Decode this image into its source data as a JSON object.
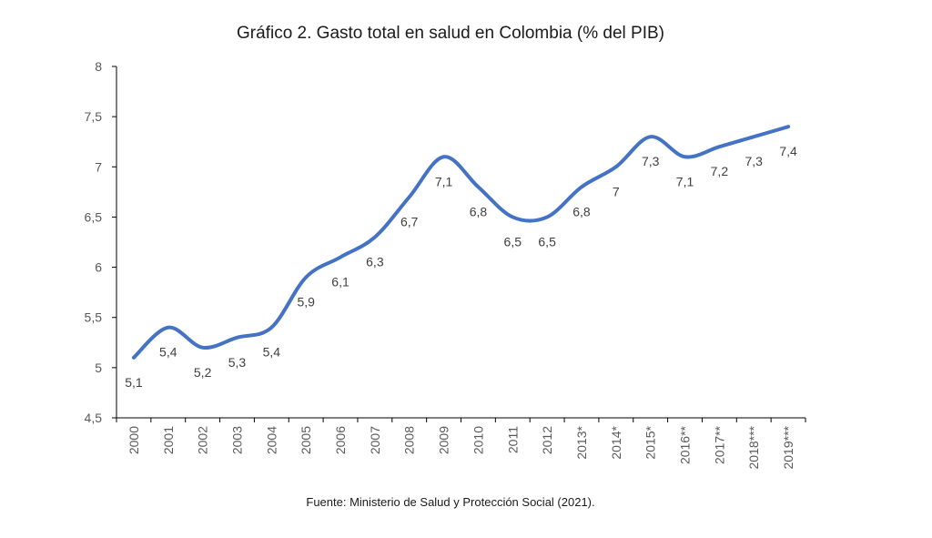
{
  "chart_data": {
    "type": "line",
    "title": "Gráfico 2. Gasto total en salud en Colombia (% del PIB)",
    "xlabel": "",
    "ylabel": "",
    "categories": [
      "2000",
      "2001",
      "2002",
      "2003",
      "2004",
      "2005",
      "2006",
      "2007",
      "2008",
      "2009",
      "2010",
      "2011",
      "2012",
      "2013*",
      "2014*",
      "2015*",
      "2016**",
      "2017**",
      "2018***",
      "2019***"
    ],
    "series": [
      {
        "values": [
          5.1,
          5.4,
          5.2,
          5.3,
          5.4,
          5.9,
          6.1,
          6.3,
          6.7,
          7.1,
          6.8,
          6.5,
          6.5,
          6.8,
          7,
          7.3,
          7.1,
          7.2,
          7.3,
          7.4
        ],
        "labels": [
          "5,1",
          "5,4",
          "5,2",
          "5,3",
          "5,4",
          "5,9",
          "6,1",
          "6,3",
          "6,7",
          "7,1",
          "6,8",
          "6,5",
          "6,5",
          "6,8",
          "7",
          "7,3",
          "7,1",
          "7,2",
          "7,3",
          "7,4"
        ]
      }
    ],
    "ylim": [
      4.5,
      8
    ],
    "yticks": [
      4.5,
      5,
      5.5,
      6,
      6.5,
      7,
      7.5,
      8
    ],
    "ytick_labels": [
      "4,5",
      "5",
      "5,5",
      "6",
      "6,5",
      "7",
      "7,5",
      "8"
    ],
    "line_color": "#4472C4",
    "grid": false,
    "legend": "none",
    "source": "Fuente: Ministerio de Salud y Protección Social (2021)."
  }
}
